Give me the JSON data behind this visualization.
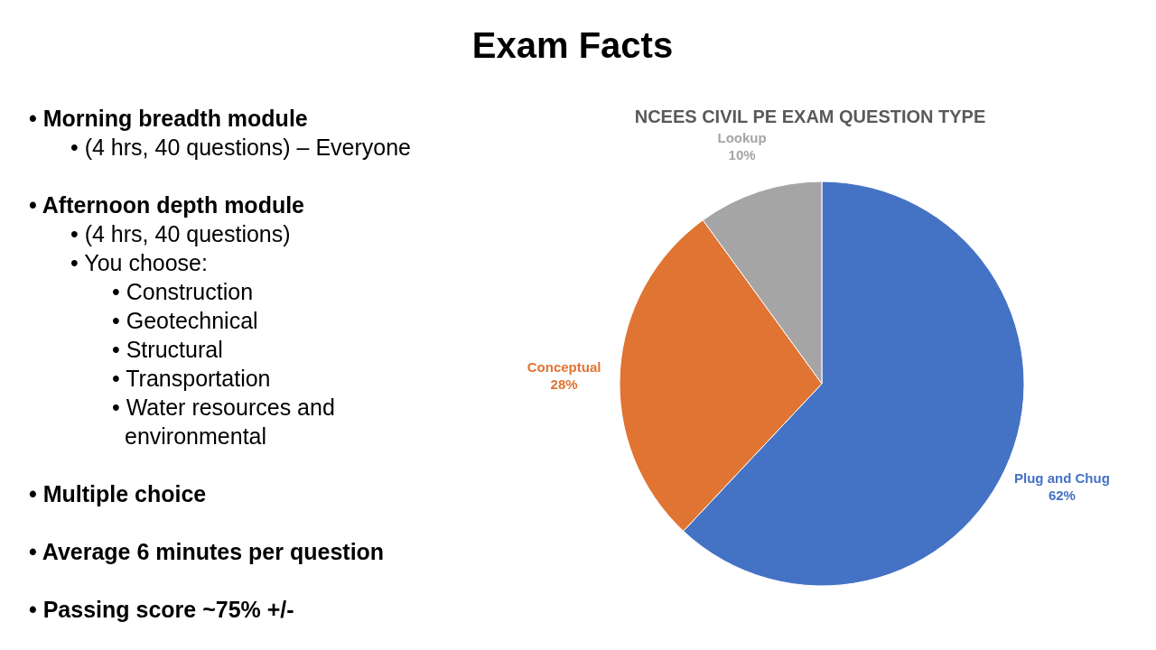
{
  "chart_data": {
    "type": "pie",
    "title": "Exam Facts",
    "subtitle": "NCEES CIVIL PE EXAM QUESTION TYPE",
    "categories": [
      "Plug and Chug",
      "Conceptual",
      "Lookup"
    ],
    "values": [
      62,
      28,
      10
    ],
    "value_labels": [
      "62%",
      "28%",
      "10%"
    ],
    "colors": [
      "#4472c4",
      "#e07433",
      "#a5a5a5"
    ],
    "annotations": [
      "• Morning breadth module",
      "• (4 hrs, 40 questions) – Everyone",
      "• Afternoon depth module",
      "• (4 hrs, 40 questions)",
      "• You choose:",
      "• Construction",
      "• Geotechnical",
      "• Structural",
      "• Transportation",
      "• Water resources and environmental",
      "• Multiple choice",
      "• Average 6 minutes per question",
      "• Passing score ~75% +/-"
    ]
  }
}
